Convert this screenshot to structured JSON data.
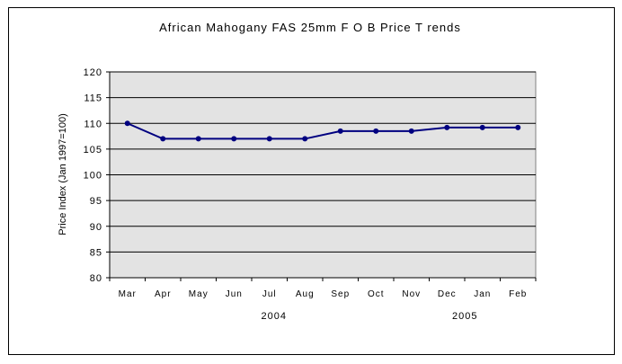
{
  "chart_data": {
    "type": "line",
    "title": "African Mahogany FAS 25mm F O B Price T rends",
    "ylabel": "Price Index (Jan 1997=100)",
    "xlabel": "",
    "categories": [
      "Mar",
      "Apr",
      "May",
      "Jun",
      "Jul",
      "Aug",
      "Sep",
      "Oct",
      "Nov",
      "Dec",
      "Jan",
      "Feb"
    ],
    "year_labels": [
      {
        "label": "2004",
        "at_category": "Jul"
      },
      {
        "label": "2005",
        "at_category": "Dec"
      }
    ],
    "series": [
      {
        "name": "Price Index",
        "color": "#000080",
        "values": [
          110,
          107,
          107,
          107,
          107,
          107,
          108.5,
          108.5,
          108.5,
          109.2,
          109.2,
          109.2
        ]
      }
    ],
    "ylim": [
      80,
      120
    ],
    "yticks": [
      80,
      85,
      90,
      95,
      100,
      105,
      110,
      115,
      120
    ],
    "ytick_labels": [
      "80",
      "85",
      "90",
      "95",
      "100",
      "105",
      "110",
      "115",
      "120"
    ],
    "grid": true,
    "plot_background": "#e3e3e3"
  }
}
